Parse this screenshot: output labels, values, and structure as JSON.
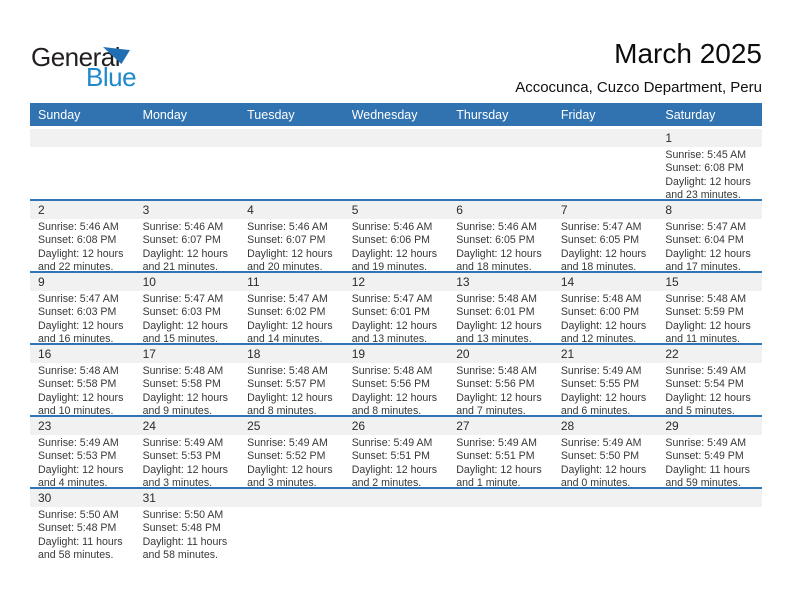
{
  "logo": {
    "general": "General",
    "blue": "Blue"
  },
  "title": "March 2025",
  "subtitle": "Accocunca, Cuzco Department, Peru",
  "colors": {
    "header_bg": "#3173B1",
    "separator": "#2E75B6",
    "strip_bg": "#F1F1F1",
    "logo_dark": "#231F20",
    "logo_blue": "#2089CC",
    "triangle_blue": "#1F6FB2"
  },
  "weekdays": [
    "Sunday",
    "Monday",
    "Tuesday",
    "Wednesday",
    "Thursday",
    "Friday",
    "Saturday"
  ],
  "calendar": {
    "weeks": [
      [
        null,
        null,
        null,
        null,
        null,
        null,
        {
          "day": "1",
          "sunrise": "Sunrise: 5:45 AM",
          "sunset": "Sunset: 6:08 PM",
          "daylight1": "Daylight: 12 hours",
          "daylight2": "and 23 minutes."
        }
      ],
      [
        {
          "day": "2",
          "sunrise": "Sunrise: 5:46 AM",
          "sunset": "Sunset: 6:08 PM",
          "daylight1": "Daylight: 12 hours",
          "daylight2": "and 22 minutes."
        },
        {
          "day": "3",
          "sunrise": "Sunrise: 5:46 AM",
          "sunset": "Sunset: 6:07 PM",
          "daylight1": "Daylight: 12 hours",
          "daylight2": "and 21 minutes."
        },
        {
          "day": "4",
          "sunrise": "Sunrise: 5:46 AM",
          "sunset": "Sunset: 6:07 PM",
          "daylight1": "Daylight: 12 hours",
          "daylight2": "and 20 minutes."
        },
        {
          "day": "5",
          "sunrise": "Sunrise: 5:46 AM",
          "sunset": "Sunset: 6:06 PM",
          "daylight1": "Daylight: 12 hours",
          "daylight2": "and 19 minutes."
        },
        {
          "day": "6",
          "sunrise": "Sunrise: 5:46 AM",
          "sunset": "Sunset: 6:05 PM",
          "daylight1": "Daylight: 12 hours",
          "daylight2": "and 18 minutes."
        },
        {
          "day": "7",
          "sunrise": "Sunrise: 5:47 AM",
          "sunset": "Sunset: 6:05 PM",
          "daylight1": "Daylight: 12 hours",
          "daylight2": "and 18 minutes."
        },
        {
          "day": "8",
          "sunrise": "Sunrise: 5:47 AM",
          "sunset": "Sunset: 6:04 PM",
          "daylight1": "Daylight: 12 hours",
          "daylight2": "and 17 minutes."
        }
      ],
      [
        {
          "day": "9",
          "sunrise": "Sunrise: 5:47 AM",
          "sunset": "Sunset: 6:03 PM",
          "daylight1": "Daylight: 12 hours",
          "daylight2": "and 16 minutes."
        },
        {
          "day": "10",
          "sunrise": "Sunrise: 5:47 AM",
          "sunset": "Sunset: 6:03 PM",
          "daylight1": "Daylight: 12 hours",
          "daylight2": "and 15 minutes."
        },
        {
          "day": "11",
          "sunrise": "Sunrise: 5:47 AM",
          "sunset": "Sunset: 6:02 PM",
          "daylight1": "Daylight: 12 hours",
          "daylight2": "and 14 minutes."
        },
        {
          "day": "12",
          "sunrise": "Sunrise: 5:47 AM",
          "sunset": "Sunset: 6:01 PM",
          "daylight1": "Daylight: 12 hours",
          "daylight2": "and 13 minutes."
        },
        {
          "day": "13",
          "sunrise": "Sunrise: 5:48 AM",
          "sunset": "Sunset: 6:01 PM",
          "daylight1": "Daylight: 12 hours",
          "daylight2": "and 13 minutes."
        },
        {
          "day": "14",
          "sunrise": "Sunrise: 5:48 AM",
          "sunset": "Sunset: 6:00 PM",
          "daylight1": "Daylight: 12 hours",
          "daylight2": "and 12 minutes."
        },
        {
          "day": "15",
          "sunrise": "Sunrise: 5:48 AM",
          "sunset": "Sunset: 5:59 PM",
          "daylight1": "Daylight: 12 hours",
          "daylight2": "and 11 minutes."
        }
      ],
      [
        {
          "day": "16",
          "sunrise": "Sunrise: 5:48 AM",
          "sunset": "Sunset: 5:58 PM",
          "daylight1": "Daylight: 12 hours",
          "daylight2": "and 10 minutes."
        },
        {
          "day": "17",
          "sunrise": "Sunrise: 5:48 AM",
          "sunset": "Sunset: 5:58 PM",
          "daylight1": "Daylight: 12 hours",
          "daylight2": "and 9 minutes."
        },
        {
          "day": "18",
          "sunrise": "Sunrise: 5:48 AM",
          "sunset": "Sunset: 5:57 PM",
          "daylight1": "Daylight: 12 hours",
          "daylight2": "and 8 minutes."
        },
        {
          "day": "19",
          "sunrise": "Sunrise: 5:48 AM",
          "sunset": "Sunset: 5:56 PM",
          "daylight1": "Daylight: 12 hours",
          "daylight2": "and 8 minutes."
        },
        {
          "day": "20",
          "sunrise": "Sunrise: 5:48 AM",
          "sunset": "Sunset: 5:56 PM",
          "daylight1": "Daylight: 12 hours",
          "daylight2": "and 7 minutes."
        },
        {
          "day": "21",
          "sunrise": "Sunrise: 5:49 AM",
          "sunset": "Sunset: 5:55 PM",
          "daylight1": "Daylight: 12 hours",
          "daylight2": "and 6 minutes."
        },
        {
          "day": "22",
          "sunrise": "Sunrise: 5:49 AM",
          "sunset": "Sunset: 5:54 PM",
          "daylight1": "Daylight: 12 hours",
          "daylight2": "and 5 minutes."
        }
      ],
      [
        {
          "day": "23",
          "sunrise": "Sunrise: 5:49 AM",
          "sunset": "Sunset: 5:53 PM",
          "daylight1": "Daylight: 12 hours",
          "daylight2": "and 4 minutes."
        },
        {
          "day": "24",
          "sunrise": "Sunrise: 5:49 AM",
          "sunset": "Sunset: 5:53 PM",
          "daylight1": "Daylight: 12 hours",
          "daylight2": "and 3 minutes."
        },
        {
          "day": "25",
          "sunrise": "Sunrise: 5:49 AM",
          "sunset": "Sunset: 5:52 PM",
          "daylight1": "Daylight: 12 hours",
          "daylight2": "and 3 minutes."
        },
        {
          "day": "26",
          "sunrise": "Sunrise: 5:49 AM",
          "sunset": "Sunset: 5:51 PM",
          "daylight1": "Daylight: 12 hours",
          "daylight2": "and 2 minutes."
        },
        {
          "day": "27",
          "sunrise": "Sunrise: 5:49 AM",
          "sunset": "Sunset: 5:51 PM",
          "daylight1": "Daylight: 12 hours",
          "daylight2": "and 1 minute."
        },
        {
          "day": "28",
          "sunrise": "Sunrise: 5:49 AM",
          "sunset": "Sunset: 5:50 PM",
          "daylight1": "Daylight: 12 hours",
          "daylight2": "and 0 minutes."
        },
        {
          "day": "29",
          "sunrise": "Sunrise: 5:49 AM",
          "sunset": "Sunset: 5:49 PM",
          "daylight1": "Daylight: 11 hours",
          "daylight2": "and 59 minutes."
        }
      ],
      [
        {
          "day": "30",
          "sunrise": "Sunrise: 5:50 AM",
          "sunset": "Sunset: 5:48 PM",
          "daylight1": "Daylight: 11 hours",
          "daylight2": "and 58 minutes."
        },
        {
          "day": "31",
          "sunrise": "Sunrise: 5:50 AM",
          "sunset": "Sunset: 5:48 PM",
          "daylight1": "Daylight: 11 hours",
          "daylight2": "and 58 minutes."
        },
        null,
        null,
        null,
        null,
        null
      ]
    ]
  }
}
